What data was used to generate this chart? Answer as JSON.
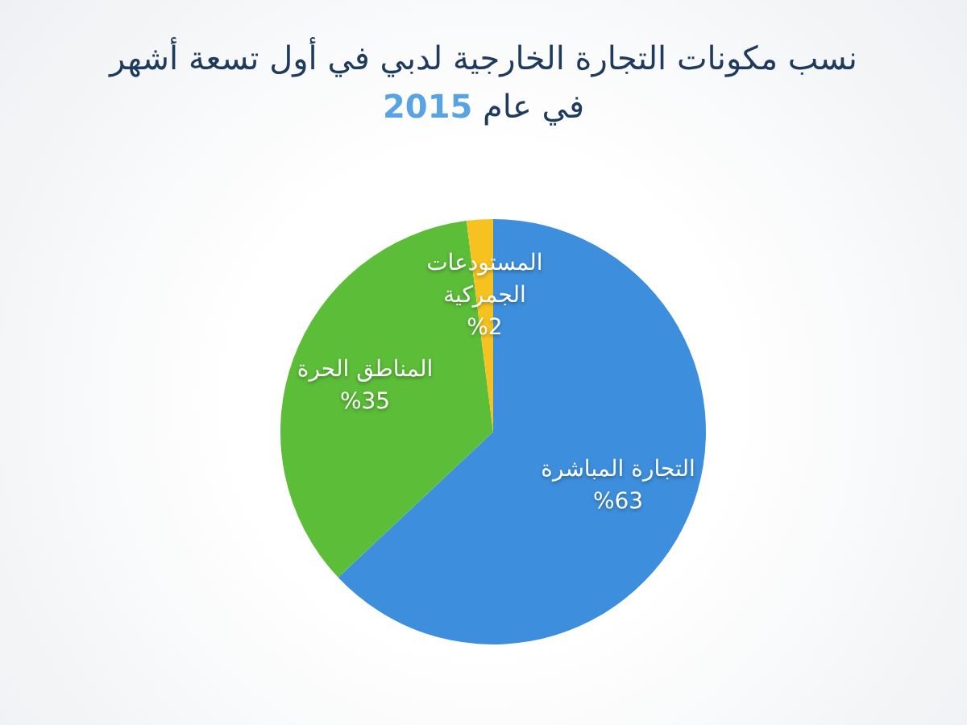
{
  "chart_data": {
    "type": "pie",
    "title": "نسب مكونات التجارة الخارجية لدبي في أول تسعة أشهر",
    "subtitle": "في عام 2015",
    "categories": [
      "التجارة المباشرة",
      "المناطق الحرة",
      "المستودعات الجمركية"
    ],
    "values": [
      63,
      35,
      2
    ],
    "colors": [
      "#3d8fde",
      "#5cbd38",
      "#f6c220"
    ],
    "value_labels": [
      "%63",
      "%35",
      "%2"
    ]
  }
}
